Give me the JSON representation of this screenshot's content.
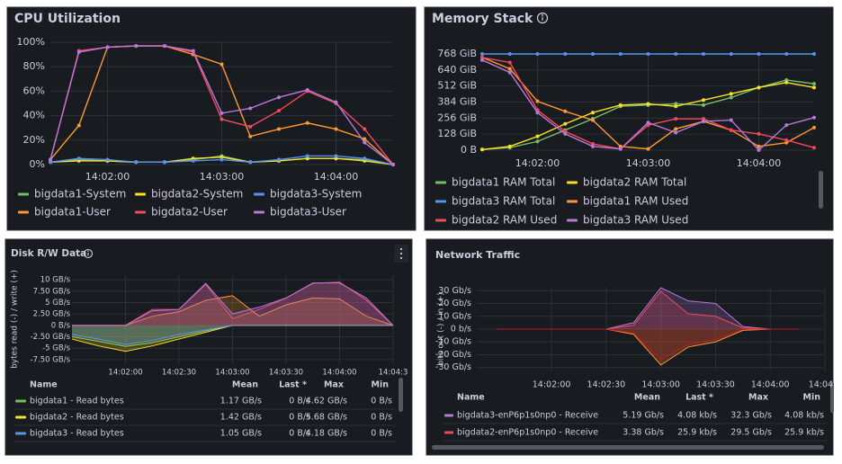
{
  "chart_data": [
    {
      "type": "line",
      "title": "CPU Utilization",
      "x": [
        "14:01:30",
        "14:01:45",
        "14:02:00",
        "14:02:15",
        "14:02:30",
        "14:02:45",
        "14:03:00",
        "14:03:15",
        "14:03:30",
        "14:03:45",
        "14:04:00",
        "14:04:15",
        "14:04:30"
      ],
      "xlim": [
        "14:01:30",
        "14:04:30"
      ],
      "xticks": [
        "14:02:00",
        "14:03:00",
        "14:04:00"
      ],
      "ylim": [
        0,
        100
      ],
      "yticks": [
        {
          "value": 0,
          "label": "0%"
        },
        {
          "value": 20,
          "label": "20%"
        },
        {
          "value": 40,
          "label": "40%"
        },
        {
          "value": 60,
          "label": "60%"
        },
        {
          "value": 80,
          "label": "80%"
        },
        {
          "value": 100,
          "label": "100%"
        }
      ],
      "grid": true,
      "series": [
        {
          "name": "bigdata1-System",
          "color": "#73bf69",
          "values": [
            2,
            4,
            3,
            2,
            2,
            4,
            7,
            2,
            3,
            5,
            5,
            4,
            0
          ]
        },
        {
          "name": "bigdata2-System",
          "color": "#fade2a",
          "values": [
            2,
            3,
            3,
            2,
            2,
            5,
            6,
            2,
            3,
            5,
            5,
            3,
            0
          ]
        },
        {
          "name": "bigdata3-System",
          "color": "#5794f2",
          "values": [
            2,
            5,
            4,
            2,
            2,
            3,
            4,
            2,
            4,
            7,
            7,
            5,
            0
          ]
        },
        {
          "name": "bigdata1-User",
          "color": "#ff9830",
          "values": [
            4,
            32,
            96,
            97,
            97,
            90,
            82,
            23,
            29,
            34,
            29,
            21,
            0
          ]
        },
        {
          "name": "bigdata2-User",
          "color": "#f2495c",
          "values": [
            4,
            93,
            96,
            97,
            97,
            92,
            37,
            31,
            44,
            60,
            50,
            29,
            0
          ]
        },
        {
          "name": "bigdata3-User",
          "color": "#b877d9",
          "values": [
            4,
            92,
            96,
            97,
            97,
            93,
            42,
            46,
            55,
            61,
            51,
            18,
            0
          ]
        }
      ]
    },
    {
      "type": "line",
      "title": "Memory Stack",
      "x": [
        "14:01:30",
        "14:01:45",
        "14:02:00",
        "14:02:15",
        "14:02:30",
        "14:02:45",
        "14:03:00",
        "14:03:15",
        "14:03:30",
        "14:03:45",
        "14:04:00",
        "14:04:15",
        "14:04:30"
      ],
      "xlim": [
        "14:01:30",
        "14:04:30"
      ],
      "xticks": [
        "14:02:00",
        "14:03:00",
        "14:04:00"
      ],
      "ylim": [
        0,
        768
      ],
      "yticks": [
        {
          "value": 0,
          "label": "0 B"
        },
        {
          "value": 128,
          "label": "128 GiB"
        },
        {
          "value": 256,
          "label": "256 GiB"
        },
        {
          "value": 384,
          "label": "384 GiB"
        },
        {
          "value": 512,
          "label": "512 GiB"
        },
        {
          "value": 640,
          "label": "640 GiB"
        },
        {
          "value": 768,
          "label": "768 GiB"
        }
      ],
      "grid": true,
      "series": [
        {
          "name": "bigdata1 RAM Total",
          "color": "#73bf69",
          "values": [
            5,
            20,
            70,
            160,
            250,
            350,
            360,
            370,
            360,
            420,
            500,
            560,
            530
          ]
        },
        {
          "name": "bigdata2 RAM Total",
          "color": "#fade2a",
          "values": [
            5,
            30,
            110,
            210,
            300,
            360,
            370,
            350,
            400,
            450,
            500,
            540,
            500
          ]
        },
        {
          "name": "bigdata3 RAM Total",
          "color": "#5794f2",
          "values": [
            768,
            768,
            768,
            768,
            768,
            768,
            768,
            768,
            768,
            768,
            768,
            768,
            768
          ]
        },
        {
          "name": "bigdata1 RAM Used",
          "color": "#ff9830",
          "values": [
            740,
            650,
            390,
            310,
            240,
            30,
            10,
            170,
            230,
            160,
            30,
            60,
            180
          ]
        },
        {
          "name": "bigdata2 RAM Used",
          "color": "#f2495c",
          "values": [
            740,
            700,
            320,
            150,
            50,
            10,
            200,
            250,
            250,
            160,
            130,
            80,
            20
          ]
        },
        {
          "name": "bigdata3 RAM Used",
          "color": "#b877d9",
          "values": [
            720,
            620,
            300,
            130,
            30,
            10,
            220,
            140,
            230,
            240,
            0,
            200,
            260
          ]
        }
      ]
    },
    {
      "type": "area",
      "title": "Disk R/W Data",
      "y_label": "bytes read (-) / write (+)",
      "x": [
        "14:01:30",
        "14:01:45",
        "14:02:00",
        "14:02:15",
        "14:02:30",
        "14:02:45",
        "14:03:00",
        "14:03:15",
        "14:03:30",
        "14:03:45",
        "14:04:00",
        "14:04:15",
        "14:04:30"
      ],
      "xlim": [
        "14:01:30",
        "14:04:30"
      ],
      "xticks": [
        "14:02:00",
        "14:02:30",
        "14:03:00",
        "14:03:30",
        "14:04:00",
        {
          "value": "14:04:30",
          "label": "14:04:3"
        }
      ],
      "ylim": [
        -8.5,
        11
      ],
      "yticks": [
        {
          "value": 10,
          "label": "10 GB/s"
        },
        {
          "value": 7.5,
          "label": "7.50 GB/s"
        },
        {
          "value": 5,
          "label": "5 GB/s"
        },
        {
          "value": 2.5,
          "label": "2.50 GB/s"
        },
        {
          "value": 0,
          "label": "0 B/s"
        },
        {
          "value": -2.5,
          "label": "-2.50 GB/s"
        },
        {
          "value": -5,
          "label": "-5 GB/s"
        },
        {
          "value": -7.5,
          "label": "-7.50 GB/s"
        }
      ],
      "grid": true,
      "table_header": [
        "Name",
        "Mean",
        "Last *",
        "Max",
        "Min"
      ],
      "series": [
        {
          "name": "bigdata1 - Read bytes",
          "color": "#73bf69",
          "values": [
            -2.5,
            -3.5,
            -4.62,
            -3.8,
            -2.5,
            -1.2,
            0,
            0,
            0,
            0,
            0,
            0,
            0
          ],
          "stats": [
            "1.17 GB/s",
            "0 B/s",
            "4.62 GB/s",
            "0 B/s"
          ]
        },
        {
          "name": "bigdata2 - Read bytes",
          "color": "#fade2a",
          "values": [
            -3,
            -4.5,
            -5.68,
            -4.5,
            -3,
            -1.5,
            0,
            0,
            0,
            0,
            0,
            0,
            0
          ],
          "stats": [
            "1.42 GB/s",
            "0 B/s",
            "5.68 GB/s",
            "0 B/s"
          ]
        },
        {
          "name": "bigdata3 - Read bytes",
          "color": "#5794f2",
          "values": [
            -2,
            -3,
            -4.18,
            -3.3,
            -2,
            -1,
            0,
            0,
            0,
            0,
            0,
            0,
            0
          ],
          "stats": [
            "1.05 GB/s",
            "0 B/s",
            "4.18 GB/s",
            "0 B/s"
          ]
        },
        {
          "color": "#ff9830",
          "values": [
            0,
            0,
            0,
            2,
            3,
            5.5,
            6.5,
            2,
            4.5,
            6,
            5.8,
            2,
            0
          ]
        },
        {
          "color": "#f2495c",
          "values": [
            0,
            0,
            0,
            3.5,
            3.5,
            9,
            1.5,
            3.5,
            6,
            9.2,
            9.5,
            5.5,
            0
          ]
        },
        {
          "color": "#b877d9",
          "values": [
            0,
            0,
            0,
            3.2,
            3.5,
            9.2,
            2.5,
            4,
            6,
            9.3,
            9.3,
            6,
            0
          ]
        }
      ]
    },
    {
      "type": "area",
      "title": "Network Traffic",
      "y_label": "bits out (-) / in (+)",
      "x": [
        "14:01:30",
        "14:01:45",
        "14:02:00",
        "14:02:15",
        "14:02:30",
        "14:02:45",
        "14:03:00",
        "14:03:15",
        "14:03:30",
        "14:03:45",
        "14:04:00",
        "14:04:15"
      ],
      "xlim": [
        "14:01:19",
        "14:04:29"
      ],
      "xticks": [
        "14:02:00",
        "14:02:30",
        "14:03:00",
        "14:03:30",
        "14:04:00",
        {
          "value": "14:04:30",
          "label": "14:04:3"
        }
      ],
      "ylim": [
        -33,
        33
      ],
      "yticks": [
        {
          "value": 30,
          "label": "30 Gb/s"
        },
        {
          "value": 20,
          "label": "20 Gb/s"
        },
        {
          "value": 10,
          "label": "10 Gb/s"
        },
        {
          "value": 0,
          "label": "0 b/s"
        },
        {
          "value": -10,
          "label": "-10 Gb/s"
        },
        {
          "value": -20,
          "label": "-20 Gb/s"
        },
        {
          "value": -30,
          "label": "-30 Gb/s"
        }
      ],
      "grid": true,
      "table_header": [
        "Name",
        "Mean",
        "Last *",
        "Max",
        "Min"
      ],
      "series": [
        {
          "name": "bigdata3-enP6p1s0np0 - Receive",
          "color": "#b877d9",
          "values": [
            0,
            0,
            0,
            0,
            0,
            5,
            32.3,
            22,
            20,
            2,
            0,
            0
          ],
          "stats": [
            "5.19 Gb/s",
            "4.08 kb/s",
            "32.3 Gb/s",
            "4.08 kb/s"
          ]
        },
        {
          "name": "bigdata2-enP6p1s0np0 - Receive",
          "color": "#f2495c",
          "values": [
            0,
            0,
            0,
            0,
            0,
            3,
            29.5,
            12,
            10,
            1,
            0,
            0
          ],
          "stats": [
            "3.38 Gb/s",
            "25.9 kb/s",
            "29.5 Gb/s",
            "25.9 kb/s"
          ]
        },
        {
          "color": "#ff9830",
          "values": [
            0,
            0,
            0,
            0,
            0,
            -4,
            -28,
            -14,
            -10,
            -1,
            0,
            0
          ]
        },
        {
          "color": "#c4162a",
          "values": [
            0,
            0,
            0,
            0,
            0,
            -3,
            -24,
            -12,
            -8,
            0,
            0,
            0
          ]
        }
      ]
    }
  ]
}
